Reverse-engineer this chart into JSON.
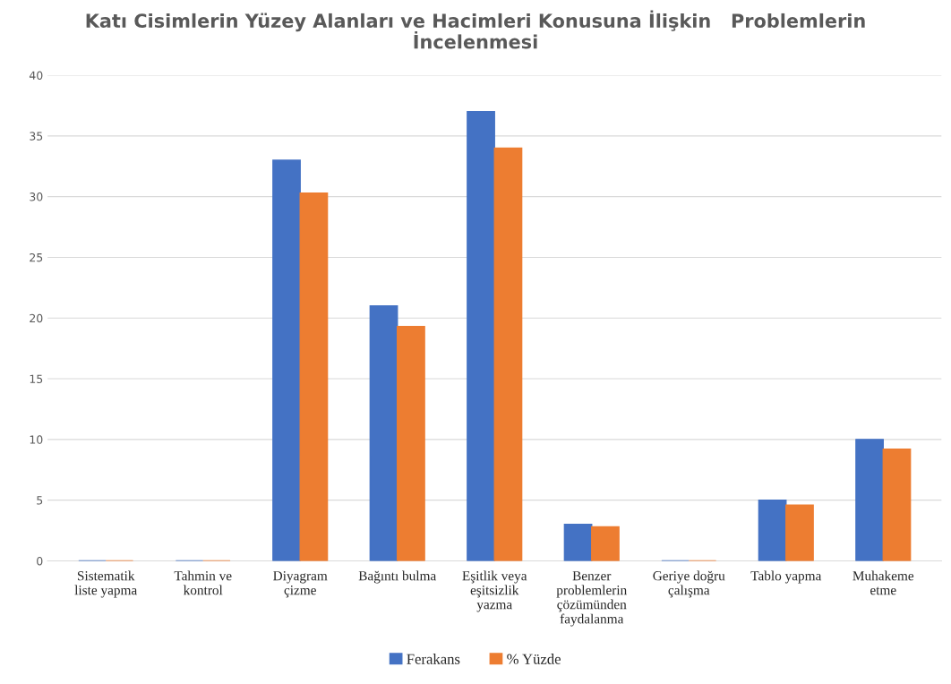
{
  "chart_data": {
    "type": "bar",
    "title": "Katı Cisimlerin Yüzey Alanları ve Hacimleri Konusuna İlişkin   Problemlerin\nİncelenmesi",
    "categories": [
      "Sistematik\nliste yapma",
      "Tahmin ve\nkontrol",
      "Diyagram\nçizme",
      "Bağıntı bulma",
      "Eşitlik veya\neşitsizlik\nyazma",
      "Benzer\nproblemlerin\nçözümünden\nfaydalanma",
      "Geriye doğru\nçalışma",
      "Tablo yapma",
      "Muhakeme\netme"
    ],
    "series": [
      {
        "name": "Ferakans",
        "color": "#4472c4",
        "values": [
          0,
          0,
          33,
          21,
          37,
          3,
          0,
          5,
          10
        ]
      },
      {
        "name": "% Yüzde",
        "color": "#ed7d31",
        "values": [
          0,
          0,
          30.3,
          19.3,
          34,
          2.8,
          0,
          4.6,
          9.2
        ]
      }
    ],
    "ylim": [
      0,
      40
    ],
    "yticks": [
      0,
      5,
      10,
      15,
      20,
      25,
      30,
      35,
      40
    ],
    "grid": "y",
    "legend": "bottom"
  }
}
